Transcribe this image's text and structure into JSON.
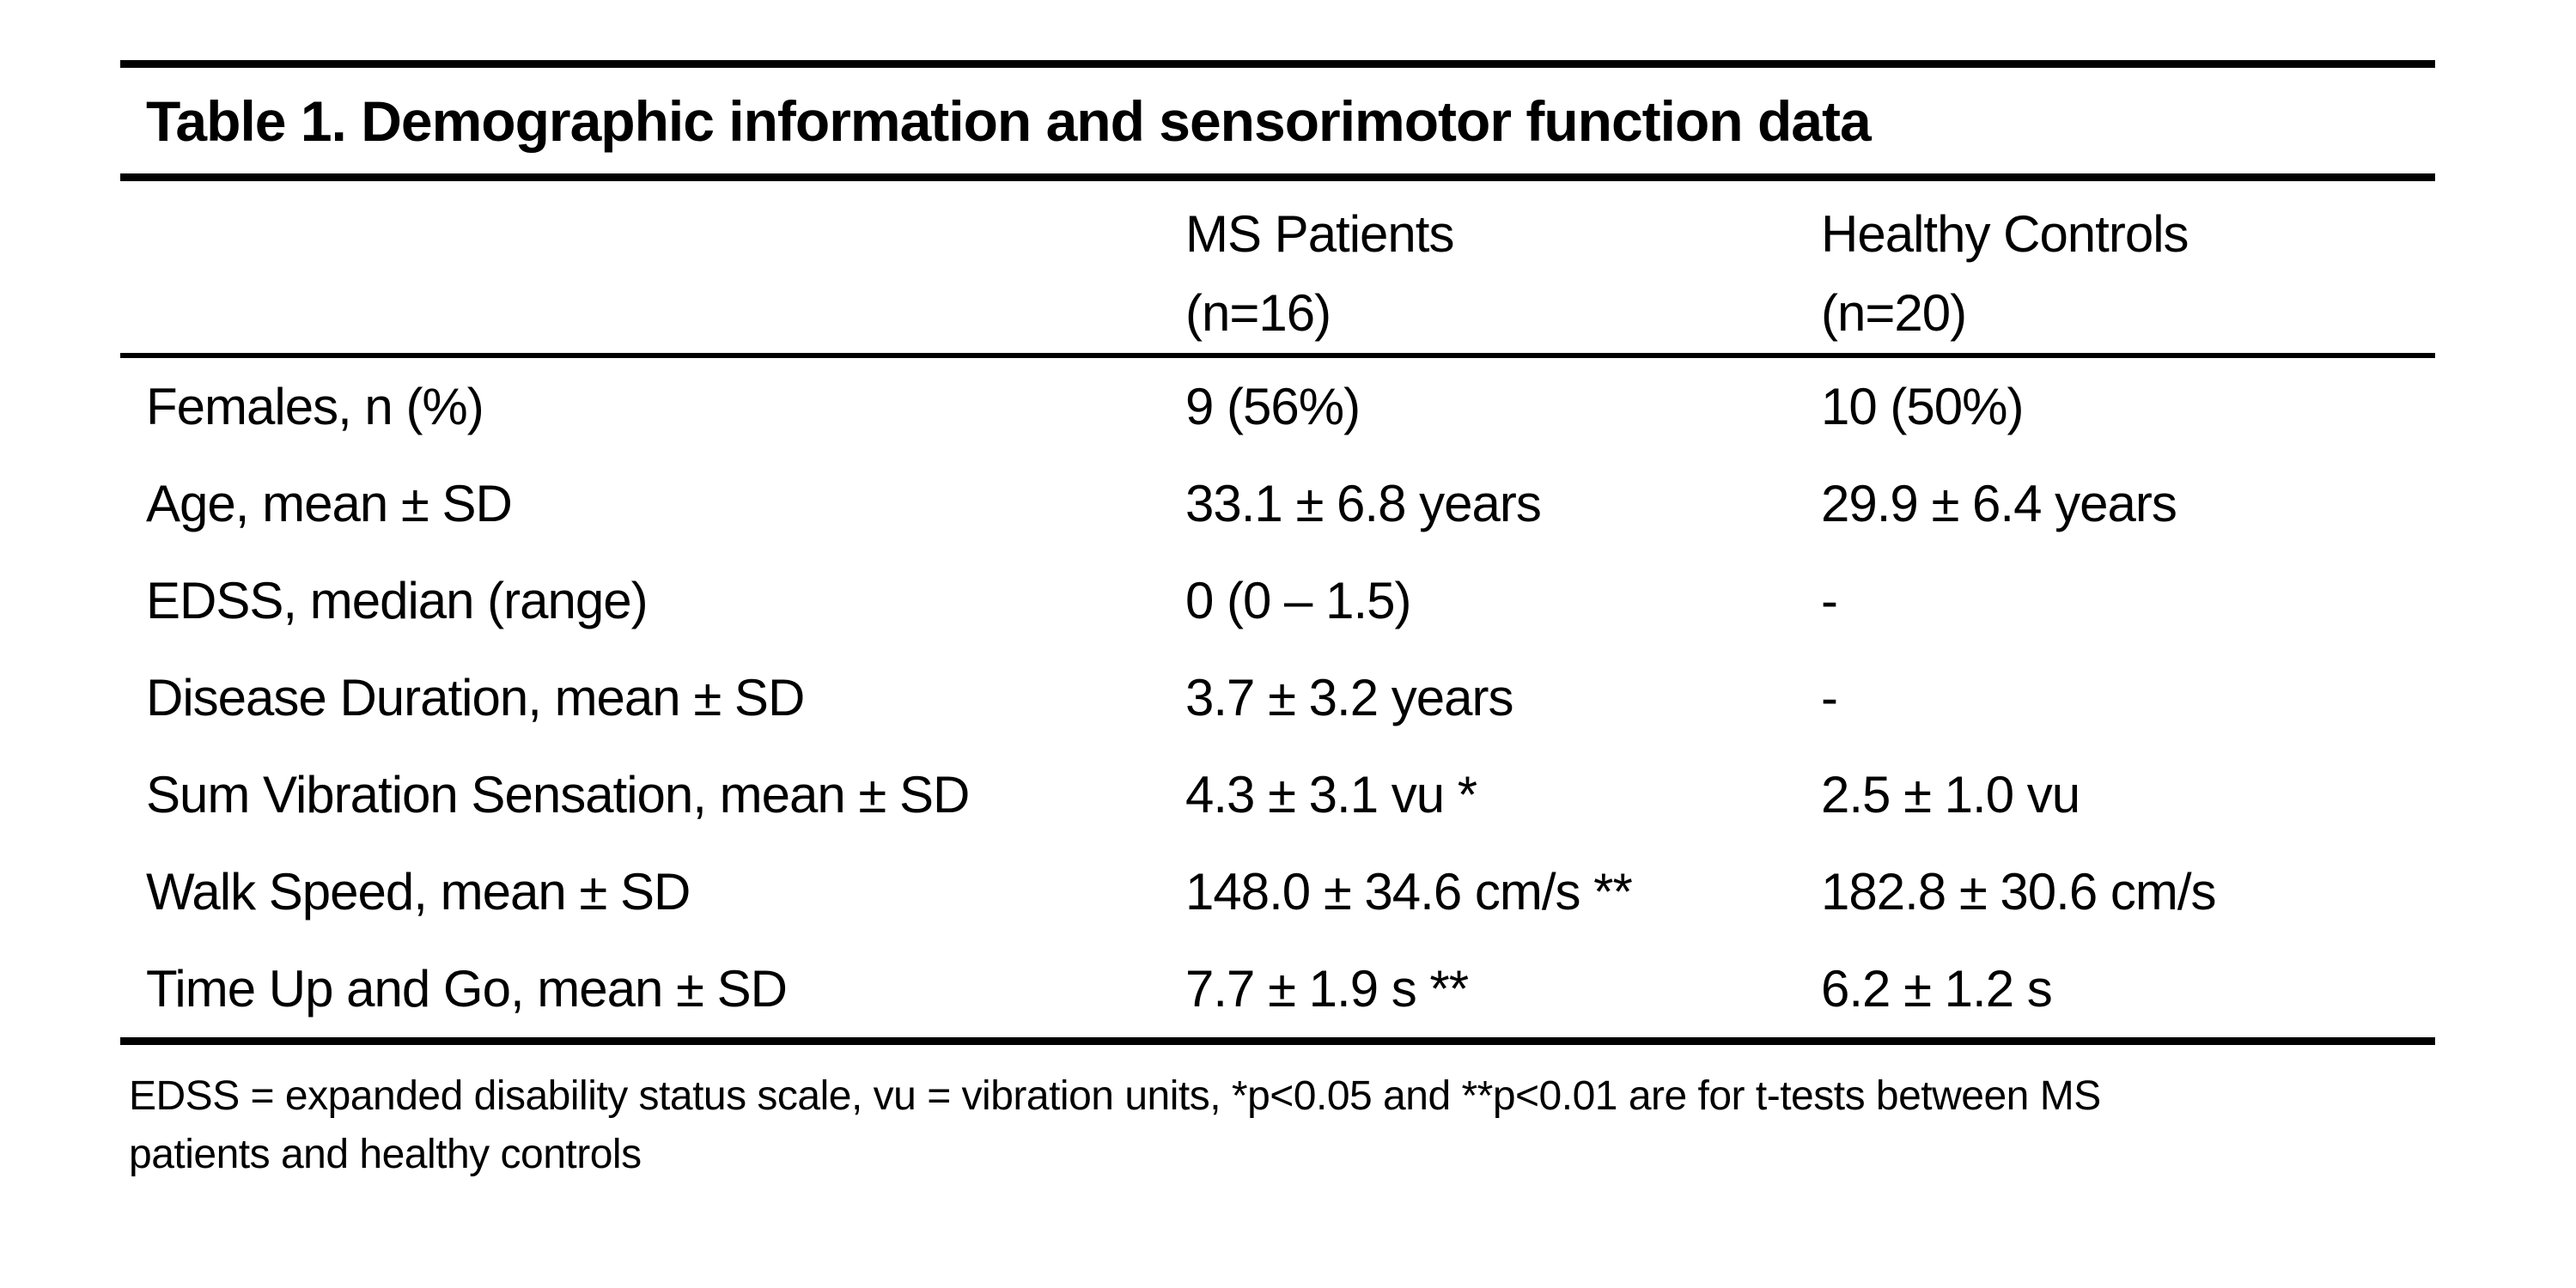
{
  "page": {
    "background_color": "#ffffff",
    "text_color": "#000000",
    "rule_color": "#000000"
  },
  "table": {
    "title": "Table 1. Demographic information and sensorimotor function data",
    "header": {
      "row_label_column": "",
      "ms_patients": {
        "label": "MS Patients",
        "sub": "(n=16)"
      },
      "healthy_controls": {
        "label": "Healthy Controls",
        "sub": "(n=20)"
      }
    },
    "rows": [
      {
        "label": "Females, n (%)",
        "ms_patients": "9 (56%)",
        "healthy_controls": "10 (50%)"
      },
      {
        "label": "Age, mean ± SD",
        "ms_patients": "33.1 ± 6.8 years",
        "healthy_controls": "29.9 ± 6.4 years"
      },
      {
        "label": "EDSS, median (range)",
        "ms_patients": "0 (0 – 1.5)",
        "healthy_controls": "-"
      },
      {
        "label": "Disease Duration, mean ± SD",
        "ms_patients": "3.7 ± 3.2 years",
        "healthy_controls": "-"
      },
      {
        "label": "Sum Vibration Sensation, mean ± SD",
        "ms_patients": "4.3 ± 3.1 vu *",
        "healthy_controls": "2.5 ± 1.0 vu"
      },
      {
        "label": "Walk Speed, mean ± SD",
        "ms_patients": "148.0 ± 34.6 cm/s **",
        "healthy_controls": "182.8 ± 30.6 cm/s"
      },
      {
        "label": "Time Up and Go, mean ± SD",
        "ms_patients": "7.7 ± 1.9 s **",
        "healthy_controls": "6.2 ± 1.2 s"
      }
    ],
    "footnote": {
      "line1": "EDSS = expanded disability status scale, vu = vibration units, *p<0.05 and **p<0.01 are for t-tests between MS",
      "line2": "patients and healthy controls"
    }
  }
}
